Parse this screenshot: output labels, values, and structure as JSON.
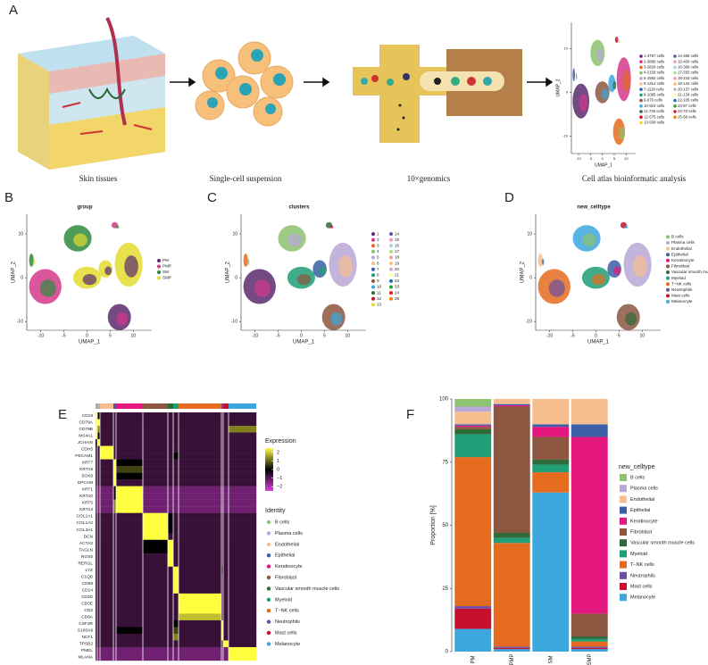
{
  "workflow": {
    "label": "A",
    "steps": [
      "Skin tissues",
      "Single-cell suspension",
      "10×genomics",
      "Cell atlas bioinformatic analysis"
    ]
  },
  "atlas": {
    "xlabel": "UMAP_1",
    "ylabel": "UMAP_2",
    "xlim": [
      -13,
      14
    ],
    "ylim": [
      -14,
      16
    ],
    "xticks": [
      -10,
      -5,
      0,
      5,
      10
    ],
    "yticks": [
      10,
      0,
      -10
    ],
    "legend": [
      "1-4787 cells",
      "2-3880 cells",
      "3-2829 cells",
      "4-2158 cells",
      "5-1582 cells",
      "6-1314 cells",
      "7-1118 cells",
      "8-1085 cells",
      "9-970 cells",
      "10-910 cells",
      "11-726 cells",
      "12-575 cells",
      "13-508 cells",
      "14-488 cells",
      "15-400 cells",
      "16-369 cells",
      "17-293 cells",
      "18-243 cells",
      "19-144 cells",
      "20-137 cells",
      "21-134 cells",
      "22-105 cells",
      "23-87 cells",
      "24-70 cells",
      "25-66 cells"
    ]
  },
  "umaps": [
    {
      "label": "B",
      "title": "group",
      "xlabel": "UMAP_1",
      "ylabel": "UMAP_2",
      "xlim": [
        -13,
        14
      ],
      "ylim": [
        -12,
        14.5
      ],
      "xticks": [
        -10,
        -5,
        0,
        5,
        10
      ],
      "yticks": [
        10,
        0,
        -10
      ],
      "legend": [
        "PM",
        "PMP",
        "SM",
        "SMP"
      ],
      "legend_colors": [
        "#5b2a6e",
        "#d6388a",
        "#2e8b3e",
        "#e3dc2f"
      ]
    },
    {
      "label": "C",
      "title": "clusters",
      "xlabel": "UMAP_1",
      "ylabel": "UMAP_2",
      "xlim": [
        -13,
        14
      ],
      "ylim": [
        -12,
        14.5
      ],
      "xticks": [
        -10,
        -5,
        0,
        5,
        10
      ],
      "yticks": [
        10,
        0,
        -10
      ],
      "legend": [
        "1",
        "2",
        "3",
        "4",
        "5",
        "6",
        "7",
        "8",
        "9",
        "10",
        "11",
        "12",
        "13",
        "14",
        "15",
        "16",
        "17",
        "18",
        "19",
        "20",
        "21",
        "22",
        "23",
        "24",
        "25"
      ],
      "legend_colors": [
        "#5b2a6e",
        "#d6388a",
        "#e56b1f",
        "#8dc26f",
        "#b9a7d6",
        "#f6be8e",
        "#3a5fa6",
        "#1f9e77",
        "#8c5640",
        "#3ba7dd",
        "#2e6b3b",
        "#c8102e",
        "#e3dc2f",
        "#6a4ea0",
        "#f29ac4",
        "#a6cee3",
        "#b2df8a",
        "#fb9a99",
        "#fdbf6f",
        "#cab2d6",
        "#ffff99",
        "#1f78b4",
        "#33a02c",
        "#e31a1c",
        "#ff7f00"
      ]
    },
    {
      "label": "D",
      "title": "new_celltype",
      "xlabel": "UMAP_1",
      "ylabel": "UMAP_2",
      "xlim": [
        -13,
        14
      ],
      "ylim": [
        -12,
        14.5
      ],
      "xticks": [
        -10,
        -5,
        0,
        5,
        10
      ],
      "yticks": [
        10,
        0,
        -10
      ],
      "legend": [
        "B cells",
        "Plasma cells",
        "Endothelial",
        "Epithelial",
        "Keratinocyte",
        "Fibroblast",
        "Vascular smooth muscle cells",
        "Myeloid",
        "T−NK cells",
        "Neutrophils",
        "Mast cells",
        "Melanocyte"
      ],
      "legend_colors": [
        "#8dc26f",
        "#b9a7d6",
        "#f6be8e",
        "#3a5fa6",
        "#e3177e",
        "#8c5640",
        "#2e6b3b",
        "#1f9e77",
        "#e56b1f",
        "#6a4ea0",
        "#c8102e",
        "#3ba7dd"
      ]
    }
  ],
  "heatmap": {
    "label": "E",
    "legend_title": "Expression",
    "lim": [
      -2.5,
      2.5
    ],
    "legend_ticks": [
      2,
      1,
      0,
      {
        "value": -1,
        "label": "−1"
      },
      {
        "value": -2,
        "label": "−2"
      }
    ],
    "identity_title": "Identity",
    "identities": [
      "B cells",
      "Plasma cells",
      "Endothelial",
      "Epithelial",
      "Keratinocyte",
      "Fibroblast",
      "Vascular smooth muscle cells",
      "Myeloid",
      "T−NK cells",
      "Neutrophils",
      "Mast cells",
      "Melanocyte"
    ],
    "identity_colors": [
      "#8dc26f",
      "#b9a7d6",
      "#f6be8e",
      "#3a5fa6",
      "#e3177e",
      "#8c5640",
      "#2e6b3b",
      "#1f9e77",
      "#e56b1f",
      "#6a4ea0",
      "#c8102e",
      "#3ba7dd"
    ],
    "group_share": [
      2,
      3,
      15,
      3,
      30,
      28,
      6,
      6,
      48,
      2,
      6,
      31
    ],
    "genes": [
      "CD19",
      "CD79A",
      "CD79B",
      "MS4A1",
      "JCHAIN",
      "CDH5",
      "PECAM1",
      "KRT7",
      "KRT19",
      "SOX9",
      "EPCAM",
      "KRT1",
      "KRT10",
      "KRT5",
      "KRT14",
      "COL1A1",
      "COL1A2",
      "COL3A1",
      "DCN",
      "ACTA2",
      "TAGLN",
      "RGS5",
      "RERGL",
      "LYZ",
      "C1QB",
      "CD68",
      "CD14",
      "CD3D",
      "CD3E",
      "CD2",
      "CD8A",
      "CSF3R",
      "S100A9",
      "NCF1",
      "TPSB2",
      "PMEL",
      "MLANA"
    ],
    "values": [
      [
        2,
        0,
        -0.5,
        -0.5,
        -0.5,
        -0.5,
        -0.5,
        -0.5,
        -0.5,
        -0.5,
        -0.5,
        -0.5
      ],
      [
        2,
        2,
        -0.5,
        -0.5,
        -0.5,
        -0.5,
        -0.5,
        -0.5,
        -0.5,
        -0.5,
        -0.5,
        -0.5
      ],
      [
        2,
        1,
        -0.5,
        -0.5,
        -0.5,
        -0.5,
        -0.5,
        -0.5,
        -0.5,
        -0.5,
        -0.5,
        1
      ],
      [
        2,
        0,
        -0.5,
        -0.5,
        -0.5,
        -0.5,
        -0.5,
        -0.5,
        -0.5,
        -0.5,
        -0.5,
        -0.5
      ],
      [
        0,
        2,
        -0.5,
        -0.5,
        -0.5,
        -0.5,
        -0.5,
        -0.5,
        -0.5,
        -0.5,
        -0.5,
        -0.5
      ],
      [
        -0.5,
        -0.5,
        2,
        -0.5,
        -0.5,
        -0.5,
        -0.5,
        -0.5,
        -0.5,
        -0.5,
        -0.5,
        -0.5
      ],
      [
        -0.5,
        -0.5,
        2,
        -0.5,
        -0.5,
        -0.5,
        -0.5,
        0,
        -0.5,
        -0.5,
        -0.5,
        -0.5
      ],
      [
        -0.5,
        -0.5,
        -0.5,
        2,
        0,
        -0.5,
        -0.5,
        -0.5,
        -0.5,
        -0.5,
        -0.5,
        -0.5
      ],
      [
        -0.5,
        -0.5,
        -0.5,
        2,
        0.5,
        -0.5,
        -0.5,
        -0.5,
        -0.5,
        -0.5,
        -0.5,
        -0.5
      ],
      [
        -0.5,
        -0.5,
        -0.5,
        2,
        0,
        -0.5,
        -0.5,
        -0.5,
        -0.5,
        -0.5,
        -0.5,
        -0.5
      ],
      [
        -0.5,
        -0.5,
        -0.5,
        2,
        -0.5,
        -0.5,
        -0.5,
        -0.5,
        -0.5,
        -0.5,
        -0.5,
        -0.5
      ],
      [
        -1,
        -1,
        -1,
        0,
        2,
        -1,
        -1,
        -1,
        -1,
        -1,
        -1,
        -1
      ],
      [
        -1,
        -1,
        -1,
        0,
        2,
        -1,
        -1,
        -1,
        -1,
        -1,
        -1,
        -1
      ],
      [
        -1,
        -1,
        -1,
        1,
        2,
        -1,
        -1,
        -1,
        -1,
        -1,
        -1,
        -1
      ],
      [
        -1,
        -1,
        -1,
        1,
        2,
        -1,
        -1,
        -1,
        -1,
        -1,
        -1,
        -1
      ],
      [
        -0.5,
        -0.5,
        -0.5,
        -0.5,
        -0.5,
        2,
        0,
        -0.5,
        -0.5,
        -0.5,
        -0.5,
        -0.5
      ],
      [
        -0.5,
        -0.5,
        -0.5,
        -0.5,
        -0.5,
        2,
        0,
        -0.5,
        -0.5,
        -0.5,
        -0.5,
        -0.5
      ],
      [
        -0.5,
        -0.5,
        -0.5,
        -0.5,
        -0.5,
        2,
        0,
        -0.5,
        -0.5,
        -0.5,
        -0.5,
        -0.5
      ],
      [
        -0.5,
        -0.5,
        -0.5,
        -0.5,
        -0.5,
        2,
        -0.5,
        -0.5,
        -0.5,
        -0.5,
        -0.5,
        -0.5
      ],
      [
        -0.5,
        -0.5,
        -0.5,
        -0.5,
        -0.5,
        0,
        2,
        -0.5,
        -0.5,
        -0.5,
        -0.5,
        -0.5
      ],
      [
        -0.5,
        -0.5,
        -0.5,
        -0.5,
        -0.5,
        0,
        2,
        -0.5,
        -0.5,
        -0.5,
        -0.5,
        -0.5
      ],
      [
        -0.5,
        -0.5,
        -0.5,
        -0.5,
        -0.5,
        -0.5,
        2,
        -0.5,
        -0.5,
        -0.5,
        -0.5,
        -0.5
      ],
      [
        -0.5,
        -0.5,
        -0.5,
        -0.5,
        -0.5,
        -0.5,
        2,
        -0.5,
        -0.5,
        -0.5,
        -0.5,
        -0.5
      ],
      [
        -0.5,
        -0.5,
        -0.5,
        -0.5,
        -0.5,
        -0.5,
        -0.5,
        2,
        -0.5,
        0,
        -0.5,
        -0.5
      ],
      [
        -0.5,
        -0.5,
        -0.5,
        -0.5,
        -0.5,
        -0.5,
        -0.5,
        2,
        -0.5,
        -0.5,
        -0.5,
        -0.5
      ],
      [
        -0.5,
        -0.5,
        -0.5,
        -0.5,
        -0.5,
        -0.5,
        -0.5,
        2,
        -0.5,
        -0.5,
        -0.5,
        -0.5
      ],
      [
        -0.5,
        -0.5,
        -0.5,
        -0.5,
        -0.5,
        -0.5,
        -0.5,
        2,
        -0.5,
        -0.5,
        -0.5,
        -0.5
      ],
      [
        -0.5,
        -0.5,
        -0.5,
        -0.5,
        -0.5,
        -0.5,
        -0.5,
        -0.5,
        2,
        -0.5,
        -0.5,
        -0.5
      ],
      [
        -0.5,
        -0.5,
        -0.5,
        -0.5,
        -0.5,
        -0.5,
        -0.5,
        -0.5,
        2,
        -0.5,
        -0.5,
        -0.5
      ],
      [
        -0.5,
        -0.5,
        -0.5,
        -0.5,
        -0.5,
        -0.5,
        -0.5,
        -0.5,
        2,
        -0.5,
        -0.5,
        -0.5
      ],
      [
        -0.5,
        -0.5,
        -0.5,
        -0.5,
        -0.5,
        -0.5,
        -0.5,
        -0.5,
        1.5,
        -0.5,
        -0.5,
        -0.5
      ],
      [
        -0.5,
        -0.5,
        -0.5,
        -0.5,
        -0.5,
        -0.5,
        -0.5,
        0,
        -0.5,
        2,
        -0.5,
        -0.5
      ],
      [
        -0.5,
        -0.5,
        -0.5,
        -0.5,
        0,
        -0.5,
        -0.5,
        0.5,
        -0.5,
        2,
        -0.5,
        -0.5
      ],
      [
        -0.5,
        -0.5,
        -0.5,
        -0.5,
        -0.5,
        -0.5,
        -0.5,
        1,
        -0.5,
        2,
        -0.5,
        -0.5
      ],
      [
        -0.5,
        -0.5,
        -0.5,
        -0.5,
        -0.5,
        -0.5,
        -0.5,
        -0.5,
        -0.5,
        -0.5,
        2,
        -0.5
      ],
      [
        -1,
        -1,
        -1,
        -1,
        -1,
        -1,
        -1,
        -1,
        -1,
        -1,
        -1,
        2
      ],
      [
        -1,
        -1,
        -1,
        -1,
        -1,
        -1,
        -1,
        -1,
        -1,
        -1,
        -1,
        2
      ]
    ]
  },
  "chart_data": {
    "type": "bar",
    "stacked": true,
    "label": "F",
    "ylabel": "Proportion [%]",
    "legend_title": "new_celltype",
    "categories": [
      "PM",
      "PMP",
      "SM",
      "SMP"
    ],
    "ylim": [
      0,
      100
    ],
    "yticks": [
      0,
      25,
      50,
      75,
      100
    ],
    "series": [
      {
        "name": "B cells",
        "color": "#8dc26f",
        "values": [
          3,
          0,
          0,
          0
        ]
      },
      {
        "name": "Plasma cells",
        "color": "#b9a7d6",
        "values": [
          2,
          0,
          0,
          0
        ]
      },
      {
        "name": "Endothelial",
        "color": "#f6be8e",
        "values": [
          5,
          2,
          10,
          10
        ]
      },
      {
        "name": "Epithelial",
        "color": "#3a5fa6",
        "values": [
          0.5,
          0.5,
          1,
          5
        ]
      },
      {
        "name": "Keratinocyte",
        "color": "#e3177e",
        "values": [
          0.5,
          0.5,
          4,
          70
        ]
      },
      {
        "name": "Fibroblast",
        "color": "#8c5640",
        "values": [
          1,
          50,
          9,
          9
        ]
      },
      {
        "name": "Vascular smooth muscle cells",
        "color": "#2e6b3b",
        "values": [
          2,
          2,
          2,
          1
        ]
      },
      {
        "name": "Myeloid",
        "color": "#1f9e77",
        "values": [
          9,
          2,
          3,
          1
        ]
      },
      {
        "name": "T−NK cells",
        "color": "#e56b1f",
        "values": [
          59,
          41,
          8,
          2
        ]
      },
      {
        "name": "Neutrophils",
        "color": "#6a4ea0",
        "values": [
          1,
          0.5,
          0,
          0.5
        ]
      },
      {
        "name": "Mast cells",
        "color": "#c8102e",
        "values": [
          8,
          0.5,
          0,
          0.5
        ]
      },
      {
        "name": "Melanocyte",
        "color": "#3ba7dd",
        "values": [
          9,
          1,
          63,
          1
        ]
      }
    ]
  }
}
